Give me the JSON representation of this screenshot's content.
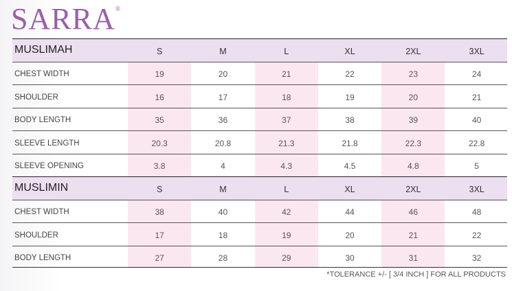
{
  "logo": {
    "text": "SARRA",
    "mark": "®"
  },
  "tables": [
    {
      "title": "MUSLIMAH",
      "sizes": [
        "S",
        "M",
        "L",
        "XL",
        "2XL",
        "3XL"
      ],
      "rows": [
        {
          "label": "CHEST WIDTH",
          "values": [
            19,
            20,
            21,
            22,
            23,
            24
          ]
        },
        {
          "label": "SHOULDER",
          "values": [
            16,
            17,
            18,
            19,
            20,
            21
          ]
        },
        {
          "label": "BODY LENGTH",
          "values": [
            35,
            36,
            37,
            38,
            39,
            40
          ]
        },
        {
          "label": "SLEEVE LENGTH",
          "values": [
            20.3,
            20.8,
            21.3,
            21.8,
            22.3,
            22.8
          ]
        },
        {
          "label": "SLEEVE OPENING",
          "values": [
            3.8,
            4,
            4.3,
            4.5,
            4.8,
            5
          ]
        }
      ]
    },
    {
      "title": "MUSLIMIN",
      "sizes": [
        "S",
        "M",
        "L",
        "XL",
        "2XL",
        "3XL"
      ],
      "rows": [
        {
          "label": "CHEST WIDTH",
          "values": [
            38,
            40,
            42,
            44,
            46,
            48
          ]
        },
        {
          "label": "SHOULDER",
          "values": [
            17,
            18,
            19,
            20,
            21,
            22
          ]
        },
        {
          "label": "BODY LENGTH",
          "values": [
            27,
            28,
            29,
            30,
            31,
            32
          ]
        }
      ]
    }
  ],
  "footnote": "*TOLERANCE +/- [ 3/4 INCH ] FOR ALL PRODUCTS"
}
